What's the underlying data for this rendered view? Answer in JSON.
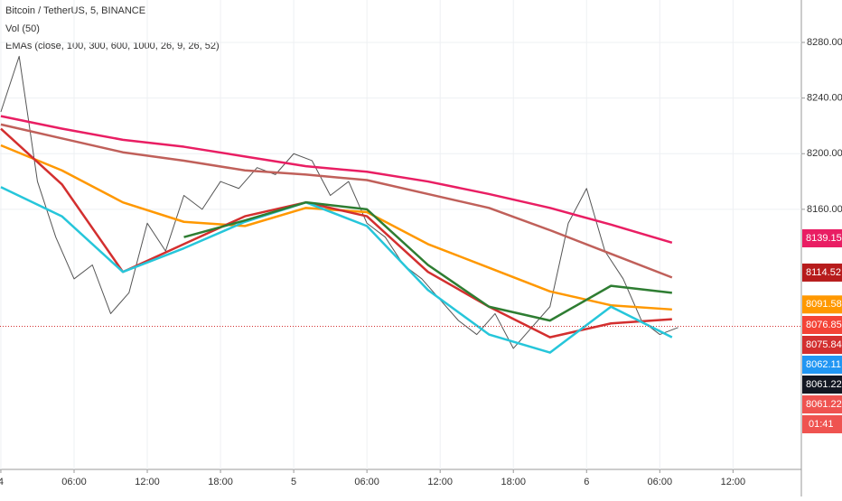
{
  "chart_data": {
    "type": "line",
    "title": "Bitcoin / TetherUS, 5, BINANCE",
    "indicators": [
      "Vol (50)",
      "EMAs (close, 100, 300, 600, 1000, 26, 9, 26, 52)"
    ],
    "xlim": [
      -0.07,
      65.6
    ],
    "xticks": [
      {
        "value": 0,
        "label": "4"
      },
      {
        "value": 6,
        "label": "06:00"
      },
      {
        "value": 12,
        "label": "12:00"
      },
      {
        "value": 18,
        "label": "18:00"
      },
      {
        "value": 24,
        "label": "5"
      },
      {
        "value": 30,
        "label": "06:00"
      },
      {
        "value": 36,
        "label": "12:00"
      },
      {
        "value": 42,
        "label": "18:00"
      },
      {
        "value": 48,
        "label": "6"
      },
      {
        "value": 54,
        "label": "06:00"
      },
      {
        "value": 60,
        "label": "12:00"
      }
    ],
    "ylim": [
      7973,
      8310.5
    ],
    "yticks": [
      {
        "value": 8160,
        "label": "8160.00"
      },
      {
        "value": 8200,
        "label": "8200.00"
      },
      {
        "value": 8240,
        "label": "8240.00"
      },
      {
        "value": 8280,
        "label": "8280.00"
      }
    ],
    "grid": true,
    "x": [
      0,
      5,
      10,
      15,
      20,
      25,
      30,
      35,
      40,
      45,
      50,
      55
    ],
    "series": [
      {
        "color": "#e91e63",
        "values": [
          8227,
          8218,
          8210,
          8205,
          8198,
          8191,
          8187,
          8180,
          8171,
          8161,
          8149,
          8136
        ]
      },
      {
        "color": "#c0605a",
        "values": [
          8221,
          8211,
          8201,
          8195,
          8188,
          8185,
          8181,
          8171,
          8161,
          8145,
          8128,
          8111
        ]
      },
      {
        "color": "#ff9800",
        "values": [
          8206,
          8188,
          8165,
          8151,
          8148,
          8161,
          8158,
          8135,
          8118,
          8101,
          8091,
          8088
        ]
      },
      {
        "color": "#d32f2f",
        "values": [
          8218,
          8178,
          8115,
          8135,
          8155,
          8165,
          8155,
          8115,
          8090,
          8068,
          8078,
          8081
        ]
      },
      {
        "color": "#26c6da",
        "values": [
          8176,
          8155,
          8115,
          8132,
          8151,
          8165,
          8148,
          8102,
          8070,
          8057,
          8090,
          8068
        ]
      },
      {
        "color": "#2e7d32",
        "values": [
          null,
          null,
          null,
          8140,
          8152,
          8165,
          8160,
          8120,
          8090,
          8080,
          8105,
          8100
        ]
      }
    ],
    "close": {
      "color": "#555555",
      "x": [
        0,
        1.5,
        3,
        4.5,
        6,
        7.5,
        9,
        10.5,
        12,
        13.5,
        15,
        16.5,
        18,
        19.5,
        21,
        22.5,
        24,
        25.5,
        27,
        28.5,
        30,
        31.5,
        33,
        34.5,
        36,
        37.5,
        39,
        40.5,
        42,
        43.5,
        45,
        46.5,
        48,
        49.5,
        51,
        52.5,
        54,
        55.5
      ],
      "values": [
        8230,
        8270,
        8180,
        8140,
        8110,
        8120,
        8085,
        8100,
        8150,
        8130,
        8170,
        8160,
        8180,
        8175,
        8190,
        8185,
        8200,
        8195,
        8170,
        8180,
        8150,
        8140,
        8120,
        8110,
        8095,
        8080,
        8070,
        8085,
        8060,
        8075,
        8090,
        8150,
        8175,
        8130,
        8110,
        8080,
        8070,
        8075
      ]
    },
    "last_price": 8075.84,
    "price_labels": [
      {
        "value": 8139.15,
        "color": "#e91e63"
      },
      {
        "value": 8114.52,
        "color": "#b71c1c"
      },
      {
        "value": 8091.58,
        "color": "#ff9800"
      },
      {
        "value": 8076.85,
        "color": "#f44336"
      },
      {
        "value": 8075.84,
        "color": "#d32f2f"
      },
      {
        "value": 8062.11,
        "color": "#2196f3"
      },
      {
        "value": 8061.22,
        "color": "#131722"
      },
      {
        "value": 8061.22,
        "color": "#ef5350"
      }
    ],
    "countdown": "01:41"
  }
}
